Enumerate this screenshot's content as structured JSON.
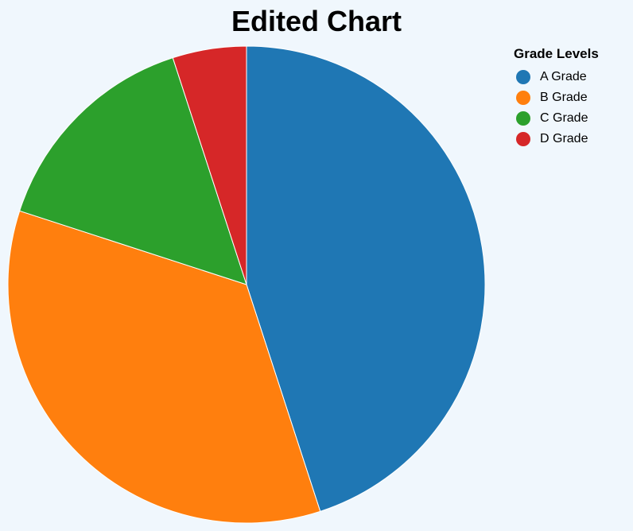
{
  "chart_data": {
    "type": "pie",
    "title": "Edited Chart",
    "legend_title": "Grade Levels",
    "legend_position": "top-right",
    "categories": [
      "A Grade",
      "B Grade",
      "C Grade",
      "D Grade"
    ],
    "values": [
      45,
      35,
      15,
      5
    ],
    "colors": [
      "#1f77b4",
      "#ff7f0e",
      "#2ca02c",
      "#d62728"
    ]
  }
}
